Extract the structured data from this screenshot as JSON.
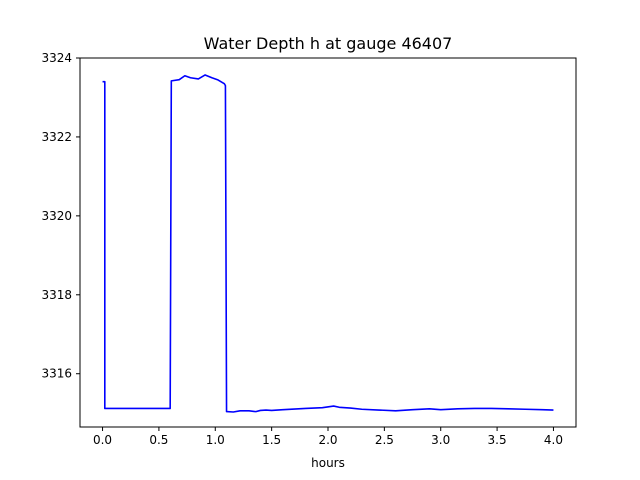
{
  "chart_data": {
    "type": "line",
    "title": "Water Depth h at gauge 46407",
    "xlabel": "hours",
    "ylabel": "",
    "xlim": [
      -0.2,
      4.2
    ],
    "ylim": [
      3314.65,
      3324.0
    ],
    "xticks": [
      0.0,
      0.5,
      1.0,
      1.5,
      2.0,
      2.5,
      3.0,
      3.5,
      4.0
    ],
    "xtick_labels": [
      "0.0",
      "0.5",
      "1.0",
      "1.5",
      "2.0",
      "2.5",
      "3.0",
      "3.5",
      "4.0"
    ],
    "yticks": [
      3316,
      3318,
      3320,
      3322,
      3324
    ],
    "ytick_labels": [
      "3316",
      "3318",
      "3320",
      "3322",
      "3324"
    ],
    "grid": false,
    "series": [
      {
        "color": "#0000ff",
        "x": [
          0.0,
          0.02,
          0.02,
          0.1,
          0.3,
          0.5,
          0.6,
          0.61,
          0.68,
          0.73,
          0.78,
          0.85,
          0.91,
          0.97,
          1.02,
          1.08,
          1.09,
          1.1,
          1.16,
          1.22,
          1.3,
          1.36,
          1.4,
          1.45,
          1.5,
          1.6,
          1.8,
          1.95,
          2.05,
          2.1,
          2.2,
          2.3,
          2.45,
          2.6,
          2.75,
          2.9,
          3.0,
          3.15,
          3.3,
          3.45,
          3.6,
          3.75,
          3.9,
          4.0
        ],
        "y": [
          3323.4,
          3323.4,
          3315.12,
          3315.12,
          3315.12,
          3315.12,
          3315.12,
          3323.42,
          3323.45,
          3323.55,
          3323.5,
          3323.47,
          3323.57,
          3323.5,
          3323.45,
          3323.35,
          3323.3,
          3315.04,
          3315.03,
          3315.06,
          3315.06,
          3315.04,
          3315.07,
          3315.08,
          3315.07,
          3315.09,
          3315.12,
          3315.14,
          3315.18,
          3315.15,
          3315.13,
          3315.1,
          3315.08,
          3315.06,
          3315.09,
          3315.11,
          3315.09,
          3315.11,
          3315.12,
          3315.12,
          3315.11,
          3315.1,
          3315.09,
          3315.08
        ]
      }
    ]
  }
}
